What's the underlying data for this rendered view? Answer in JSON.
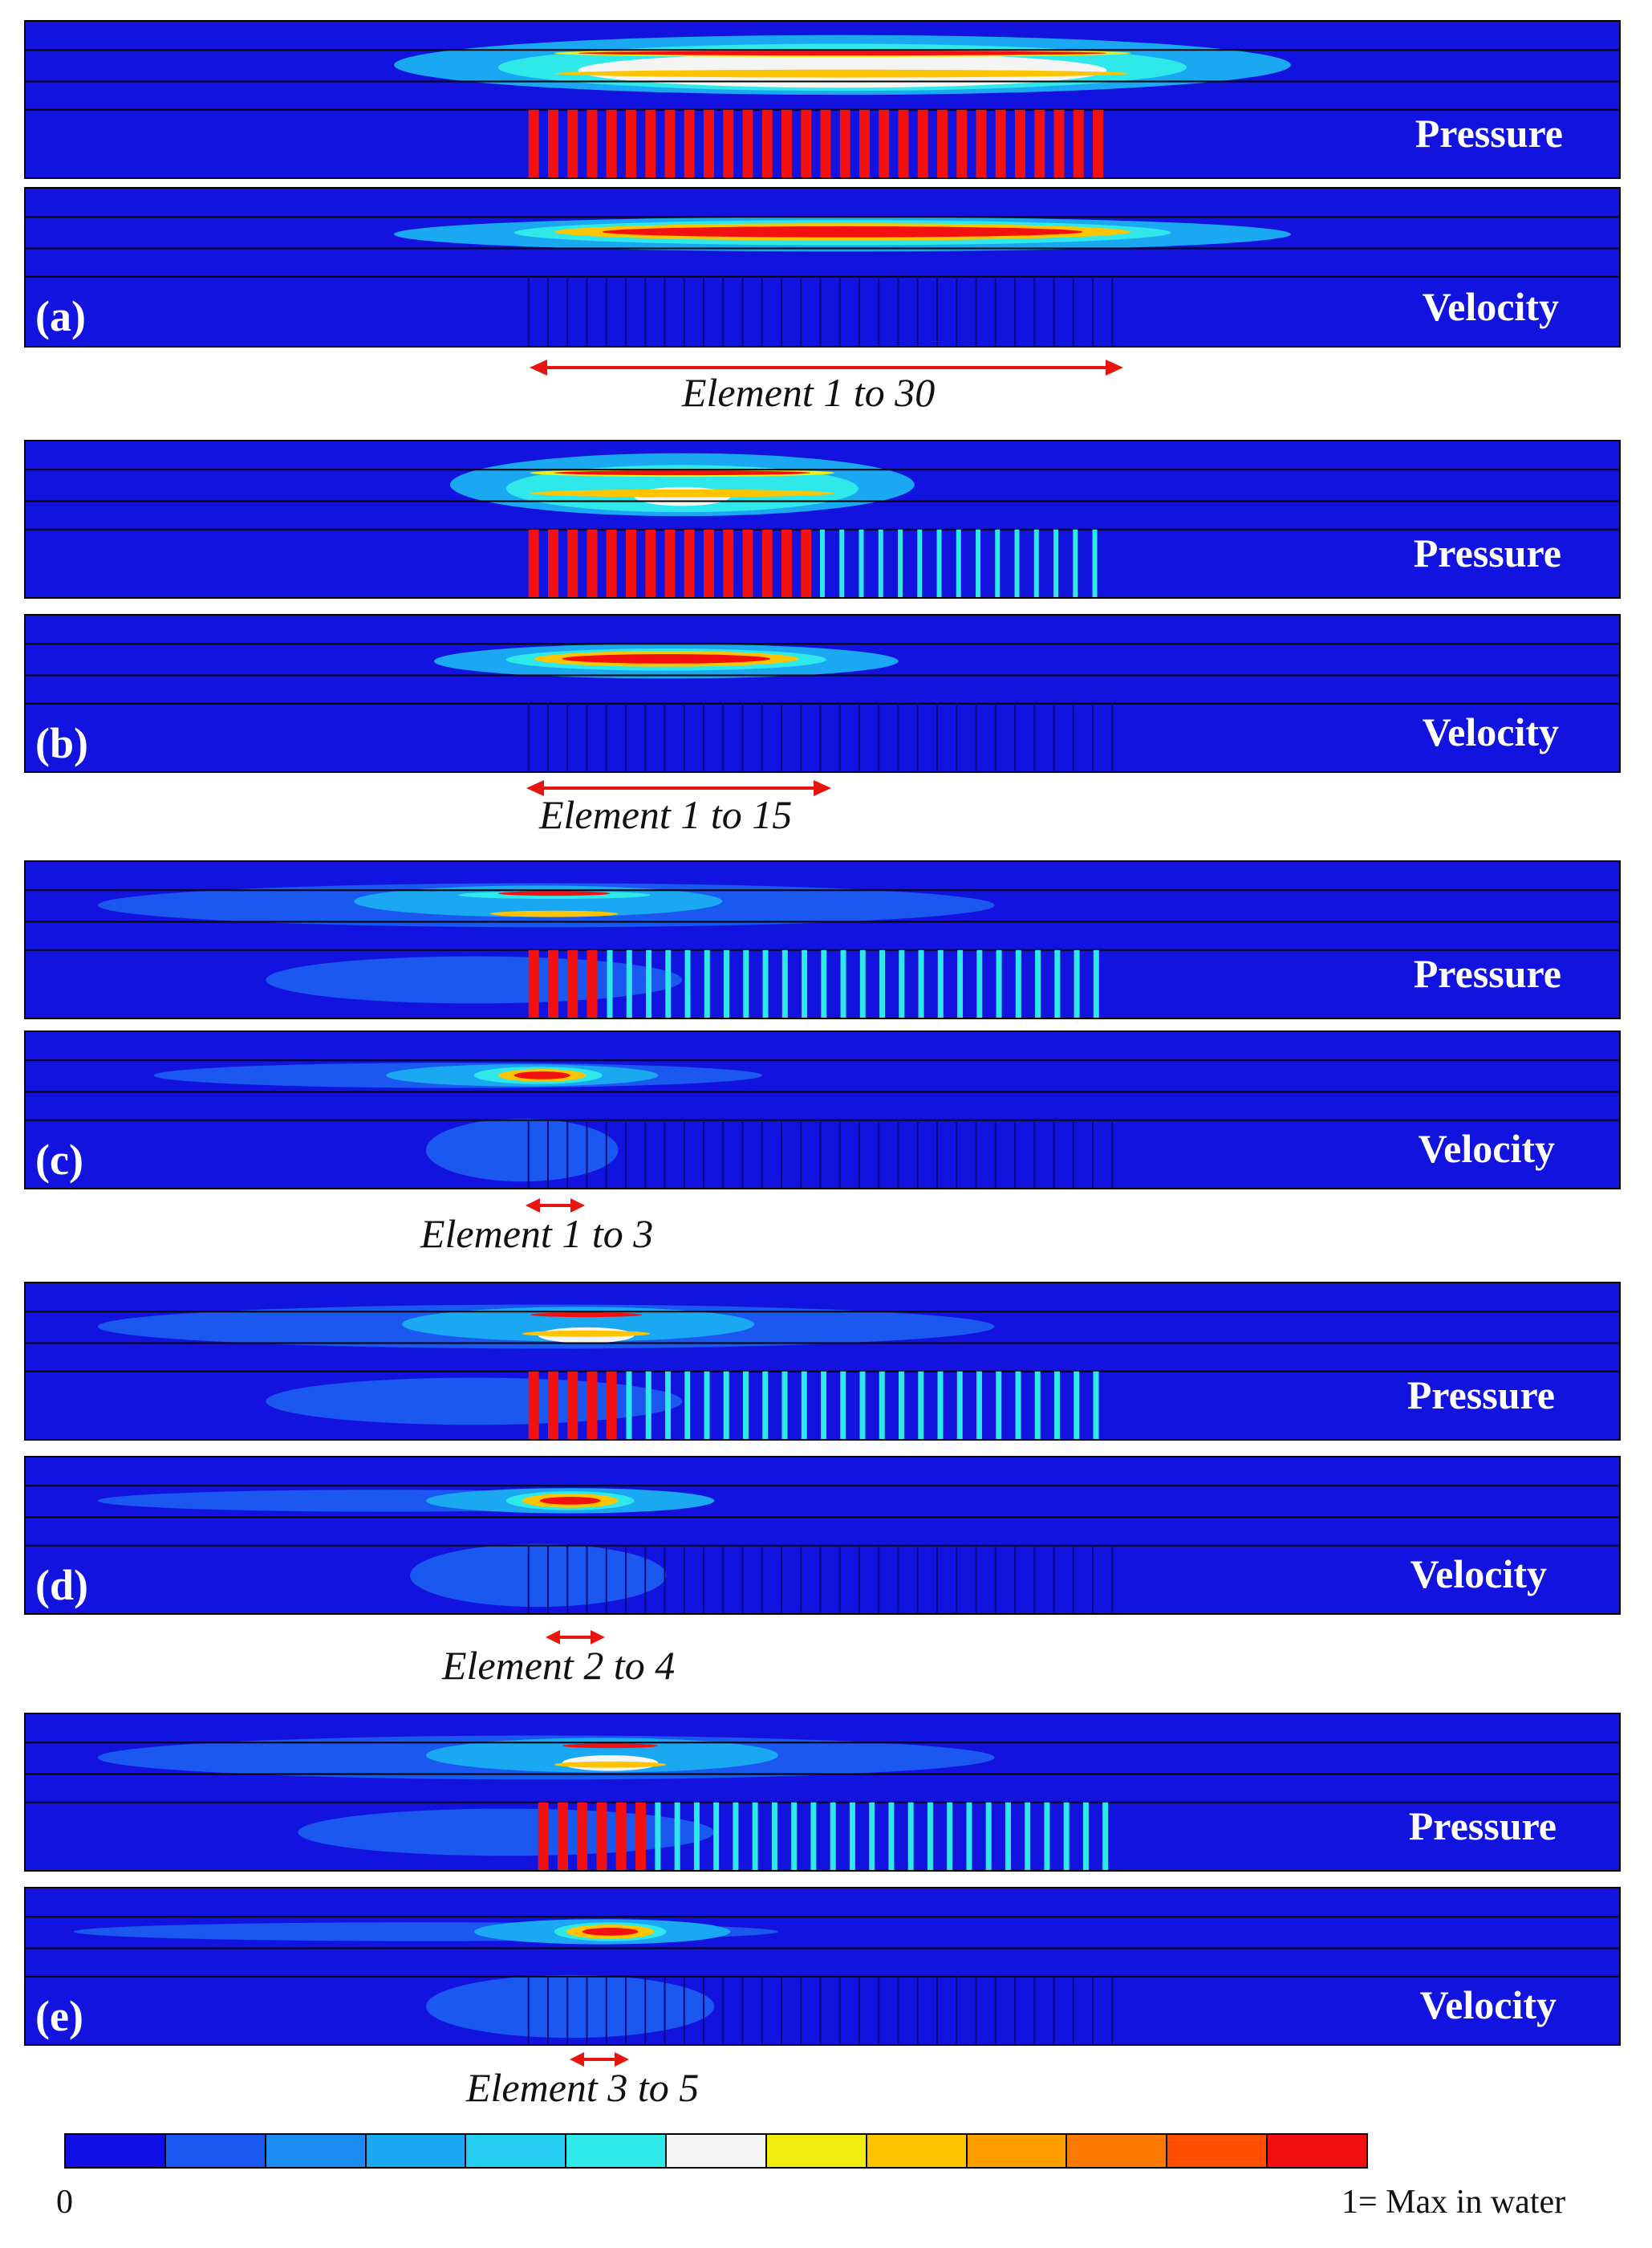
{
  "panels": [
    {
      "id": "a",
      "subfig": "(a)",
      "pressure_label": "Pressure",
      "velocity_label": "Velocity",
      "range_label": "Element 1 to 30"
    },
    {
      "id": "b",
      "subfig": "(b)",
      "pressure_label": "Pressure",
      "velocity_label": "Velocity",
      "range_label": "Element 1 to 15"
    },
    {
      "id": "c",
      "subfig": "(c)",
      "pressure_label": "Pressure",
      "velocity_label": "Velocity",
      "range_label": "Element 1 to 3"
    },
    {
      "id": "d",
      "subfig": "(d)",
      "pressure_label": "Pressure",
      "velocity_label": "Velocity",
      "range_label": "Element 2 to 4"
    },
    {
      "id": "e",
      "subfig": "(e)",
      "pressure_label": "Pressure",
      "velocity_label": "Velocity",
      "range_label": "Element 3 to 5"
    }
  ],
  "colorbar": {
    "min_label": "0",
    "max_label": "1= Max in water",
    "colors": [
      "#1010e6",
      "#1a58f0",
      "#1c8cf4",
      "#1ba8f2",
      "#25cdf0",
      "#2fe8ea",
      "#f4f4f4",
      "#f2ee12",
      "#ffc400",
      "#ff9e00",
      "#ff7a00",
      "#ff4e00",
      "#f21010"
    ]
  },
  "colors": {
    "accent_red": "#e8140f",
    "field_blue": "#1313e0"
  }
}
